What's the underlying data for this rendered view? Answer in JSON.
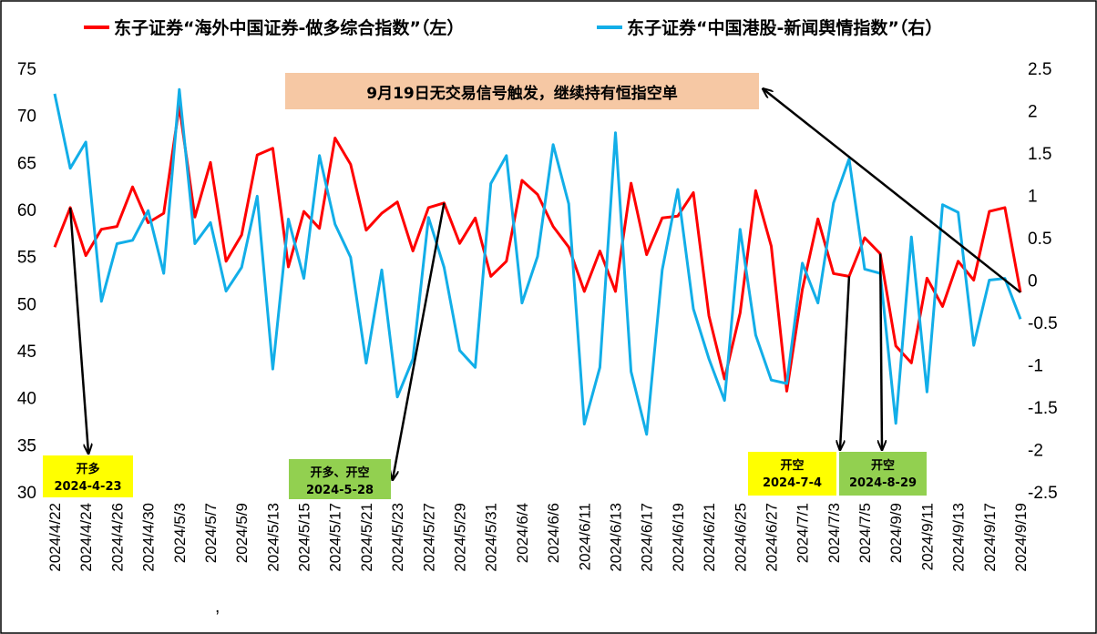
{
  "chart_data": {
    "type": "line",
    "title": "",
    "xlabel": "",
    "ylabel": "",
    "ylim_left": [
      30,
      75
    ],
    "yticks_left": [
      30,
      35,
      40,
      45,
      50,
      55,
      60,
      65,
      70,
      75
    ],
    "ylim_right": [
      -2.5,
      2.5
    ],
    "yticks_right": [
      "-2.5",
      "-2",
      "-1.5",
      "-1",
      "-0.5",
      "0",
      "0.5",
      "1",
      "1.5",
      "2",
      "2.5"
    ],
    "legend_position": "top",
    "x": [
      "2024/4/22",
      "2024/4/23",
      "2024/4/24",
      "2024/4/25",
      "2024/4/26",
      "2024/4/29",
      "2024/4/30",
      "2024/5/2",
      "2024/5/3",
      "2024/5/6",
      "2024/5/7",
      "2024/5/8",
      "2024/5/9",
      "2024/5/10",
      "2024/5/13",
      "2024/5/14",
      "2024/5/15",
      "2024/5/16",
      "2024/5/17",
      "2024/5/20",
      "2024/5/21",
      "2024/5/22",
      "2024/5/23",
      "2024/5/24",
      "2024/5/27",
      "2024/5/28",
      "2024/5/29",
      "2024/5/30",
      "2024/5/31",
      "2024/6/3",
      "2024/6/4",
      "2024/6/5",
      "2024/6/6",
      "2024/6/7",
      "2024/6/11",
      "2024/6/12",
      "2024/6/13",
      "2024/6/14",
      "2024/6/17",
      "2024/6/18",
      "2024/6/19",
      "2024/6/20",
      "2024/6/21",
      "2024/6/24",
      "2024/6/25",
      "2024/6/26",
      "2024/6/27",
      "2024/6/28",
      "2024/7/1",
      "2024/7/2",
      "2024/7/3",
      "2024/7/4",
      "2024/7/5",
      "2024/7/8",
      "2024/9/9",
      "2024/9/10",
      "2024/9/11",
      "2024/9/12",
      "2024/9/13",
      "2024/9/16",
      "2024/9/17",
      "2024/9/18",
      "2024/9/19"
    ],
    "x_tick_labels_shown": [
      "2024/4/22",
      "2024/4/24",
      "2024/4/26",
      "2024/4/30",
      "2024/5/3",
      "2024/5/7",
      "2024/5/9",
      "2024/5/13",
      "2024/5/15",
      "2024/5/17",
      "2024/5/21",
      "2024/5/23",
      "2024/5/27",
      "2024/5/29",
      "2024/5/31",
      "2024/6/4",
      "2024/6/6",
      "2024/6/11",
      "2024/6/13",
      "2024/6/17",
      "2024/6/19",
      "2024/6/21",
      "2024/6/25",
      "2024/6/27",
      "2024/7/1",
      "2024/7/3",
      "2024/7/5",
      "2024/9/9",
      "2024/9/11",
      "2024/9/13",
      "2024/9/17",
      "2024/9/19"
    ],
    "stray_mark": ",",
    "series": [
      {
        "name": "东子证券“海外中国证券-做多综合指数”（左）",
        "axis": "left",
        "color": "#ff0000",
        "values": [
          56.0,
          60.2,
          55.1,
          57.9,
          58.2,
          62.4,
          58.6,
          59.6,
          71.0,
          59.2,
          65.0,
          54.5,
          57.3,
          65.8,
          66.5,
          53.9,
          59.8,
          58.0,
          67.6,
          64.8,
          57.8,
          59.6,
          60.8,
          55.6,
          60.2,
          60.7,
          56.4,
          59.1,
          52.9,
          54.5,
          63.1,
          61.6,
          58.2,
          56.0,
          51.3,
          55.6,
          51.3,
          62.8,
          55.2,
          59.1,
          59.3,
          61.8,
          48.7,
          42.0,
          49.0,
          62.0,
          56.1,
          40.7,
          51.5,
          59.0,
          53.2,
          52.9,
          57.0,
          55.3,
          45.5,
          43.7,
          52.7,
          49.7,
          54.5,
          52.5,
          59.8,
          60.2,
          51.2
        ]
      },
      {
        "name": "东子证券“中国港股-新闻舆情指数”（右）",
        "axis": "right",
        "color": "#12aee8",
        "values": [
          2.2,
          1.32,
          1.63,
          -0.25,
          0.43,
          0.47,
          0.82,
          0.08,
          2.25,
          0.43,
          0.68,
          -0.13,
          0.15,
          0.99,
          -1.05,
          0.72,
          0.02,
          1.47,
          0.66,
          0.27,
          -0.98,
          0.12,
          -1.38,
          -0.93,
          0.74,
          0.15,
          -0.83,
          -1.03,
          1.14,
          1.47,
          -0.27,
          0.28,
          1.6,
          0.9,
          -1.7,
          -1.03,
          1.74,
          -1.08,
          -1.82,
          0.12,
          1.07,
          -0.34,
          -0.93,
          -1.42,
          0.6,
          -0.65,
          -1.18,
          -1.22,
          0.2,
          -0.27,
          0.91,
          1.43,
          0.13,
          0.08,
          -1.69,
          0.51,
          -1.32,
          0.89,
          0.8,
          -0.77,
          0.0,
          0.02,
          -0.46
        ]
      }
    ],
    "annotations": [
      {
        "text": "9月19日无交易信号触发，继续持有恒指空单",
        "color": "#f6c8a4",
        "x": "2024/9/19",
        "y": 51.2
      },
      {
        "line1": "开多",
        "line2": "2024-4-23",
        "color": "#ffff00",
        "x": "2024/4/23",
        "y": 60.2
      },
      {
        "line1": "开多、开空",
        "line2": "2024-5-28",
        "color": "#92d050",
        "x": "2024/5/28",
        "y": 60.7
      },
      {
        "line1": "开空",
        "line2": "2024-7-4",
        "color": "#ffff00",
        "x": "2024/7/4",
        "y": 52.9
      },
      {
        "line1": "开空",
        "line2": "2024-8-29",
        "color": "#92d050",
        "x": "2024/7/8",
        "y": 55.3
      }
    ]
  }
}
